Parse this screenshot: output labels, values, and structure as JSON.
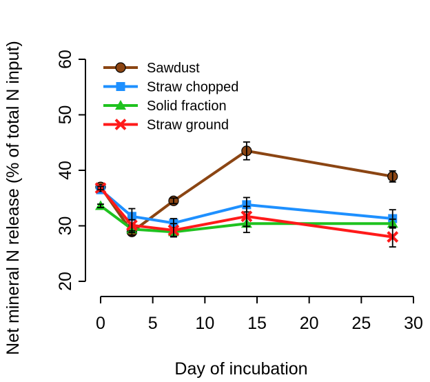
{
  "chart_data": {
    "type": "line",
    "title": "",
    "xlabel": "Day of incubation",
    "ylabel": "Net mineral N release (% of total N input)",
    "xlim": [
      0,
      30
    ],
    "ylim": [
      20,
      60
    ],
    "xticks": [
      0,
      5,
      10,
      15,
      20,
      25,
      30
    ],
    "yticks": [
      20,
      30,
      40,
      50,
      60
    ],
    "x": [
      0,
      3,
      7,
      14,
      28
    ],
    "legend_position": "top-left",
    "series": [
      {
        "name": "Sawdust",
        "color": "#8B4513",
        "marker": "circle",
        "values": [
          37.0,
          28.9,
          34.5,
          43.5,
          38.9
        ],
        "errors": [
          0.4,
          0.6,
          0.5,
          1.6,
          1.0
        ]
      },
      {
        "name": "Straw chopped",
        "color": "#1E90FF",
        "marker": "square",
        "values": [
          36.5,
          31.7,
          30.5,
          33.8,
          31.3
        ],
        "errors": [
          0.3,
          1.4,
          0.8,
          1.3,
          1.6
        ]
      },
      {
        "name": "Solid fraction",
        "color": "#1FC21F",
        "marker": "triangle",
        "values": [
          33.6,
          29.4,
          28.9,
          30.4,
          30.4
        ],
        "errors": [
          0.3,
          0.6,
          0.8,
          1.6,
          0.8
        ]
      },
      {
        "name": "Straw ground",
        "color": "#FF1A1A",
        "marker": "cross",
        "values": [
          36.8,
          30.1,
          29.2,
          31.7,
          28.0
        ],
        "errors": [
          0.3,
          1.0,
          1.2,
          1.8,
          1.8
        ]
      }
    ]
  }
}
